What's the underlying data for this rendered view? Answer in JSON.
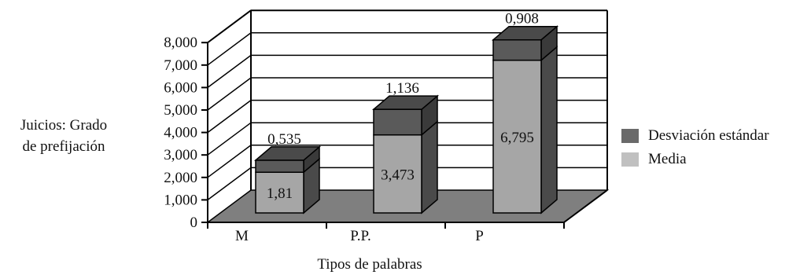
{
  "chart_data": {
    "type": "bar",
    "stacked": true,
    "three_d": true,
    "categories": [
      "M",
      "P.P.",
      "P"
    ],
    "series": [
      {
        "name": "Media",
        "values": [
          1.81,
          3.473,
          6.795
        ],
        "labels": [
          "1,81",
          "3,473",
          "6,795"
        ],
        "color": "#a6a6a6"
      },
      {
        "name": "Desviación estándar",
        "values": [
          0.535,
          1.136,
          0.908
        ],
        "labels": [
          "0,535",
          "1,136",
          "0,908"
        ],
        "color": "#5a5a5a"
      }
    ],
    "yticks": [
      "0",
      "1,000",
      "2,000",
      "3,000",
      "4,000",
      "5,000",
      "6,000",
      "7,000",
      "8,000"
    ],
    "ylim": [
      0,
      8
    ],
    "ylabel_lines": [
      "Juicios: Grado",
      "de prefijación"
    ],
    "xlabel": "Tipos de palabras",
    "legend_position": "right",
    "colors": {
      "floor": "#7f7f7f",
      "media": "#a6a6a6",
      "desviacion": "#5a5a5a"
    }
  }
}
